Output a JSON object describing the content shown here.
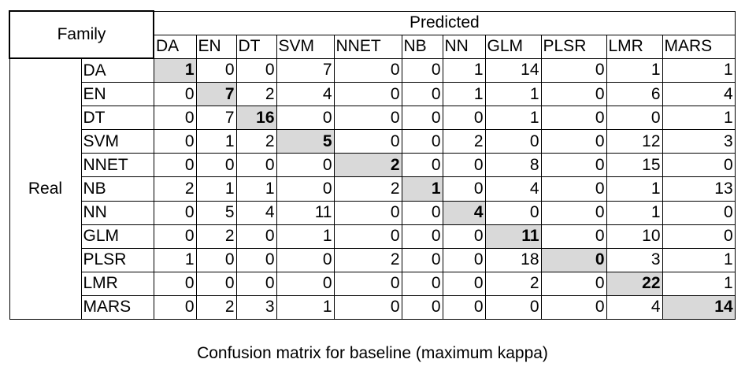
{
  "table": {
    "corner_label": "Family",
    "predicted_label": "Predicted",
    "real_label": "Real",
    "columns": [
      "DA",
      "EN",
      "DT",
      "SVM",
      "NNET",
      "NB",
      "NN",
      "GLM",
      "PLSR",
      "LMR",
      "MARS"
    ],
    "rows": [
      {
        "label": "DA",
        "values": [
          1,
          0,
          0,
          7,
          0,
          0,
          1,
          14,
          0,
          1,
          1
        ]
      },
      {
        "label": "EN",
        "values": [
          0,
          7,
          2,
          4,
          0,
          0,
          1,
          1,
          0,
          6,
          4
        ]
      },
      {
        "label": "DT",
        "values": [
          0,
          7,
          16,
          0,
          0,
          0,
          0,
          1,
          0,
          0,
          1
        ]
      },
      {
        "label": "SVM",
        "values": [
          0,
          1,
          2,
          5,
          0,
          0,
          2,
          0,
          0,
          12,
          3
        ]
      },
      {
        "label": "NNET",
        "values": [
          0,
          0,
          0,
          0,
          2,
          0,
          0,
          8,
          0,
          15,
          0
        ]
      },
      {
        "label": "NB",
        "values": [
          2,
          1,
          1,
          0,
          2,
          1,
          0,
          4,
          0,
          1,
          13
        ]
      },
      {
        "label": "NN",
        "values": [
          0,
          5,
          4,
          11,
          0,
          0,
          4,
          0,
          0,
          1,
          0
        ]
      },
      {
        "label": "GLM",
        "values": [
          0,
          2,
          0,
          1,
          0,
          0,
          0,
          11,
          0,
          10,
          0
        ]
      },
      {
        "label": "PLSR",
        "values": [
          1,
          0,
          0,
          0,
          2,
          0,
          0,
          18,
          0,
          3,
          1
        ]
      },
      {
        "label": "LMR",
        "values": [
          0,
          0,
          0,
          0,
          0,
          0,
          0,
          2,
          0,
          22,
          1
        ]
      },
      {
        "label": "MARS",
        "values": [
          0,
          2,
          3,
          1,
          0,
          0,
          0,
          0,
          0,
          4,
          14
        ]
      }
    ],
    "diagonal_highlight_color": "#d9d9d9"
  },
  "caption": "Confusion matrix for baseline (maximum kappa)"
}
